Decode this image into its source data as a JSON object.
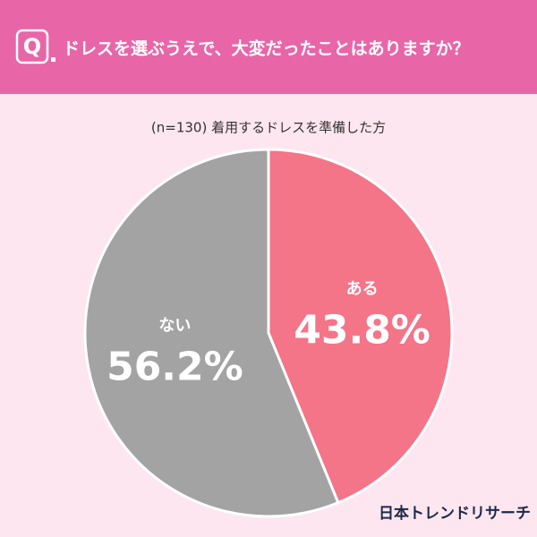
{
  "q_label": "Q",
  "brand": "日本トレンドリサーチ",
  "chart_data": {
    "type": "pie",
    "title": "ドレスを選ぶうえで、大変だったことはありますか？",
    "subtitle": "(n=130) 着用するドレスを準備した方",
    "categories": [
      "ある",
      "ない"
    ],
    "values": [
      43.8,
      56.2
    ],
    "value_labels": [
      "43.8%",
      "56.2%"
    ],
    "colors": [
      "#f47488",
      "#a3a3a3"
    ]
  }
}
